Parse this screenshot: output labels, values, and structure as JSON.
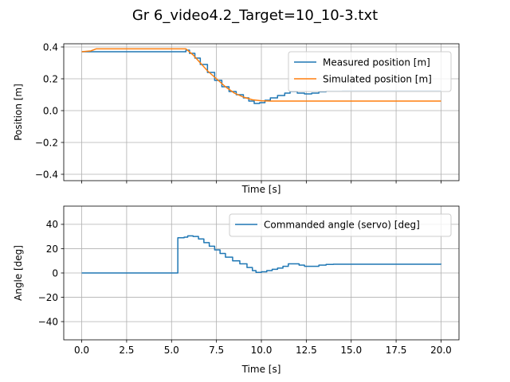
{
  "figure": {
    "title": "Gr 6_video4.2_Target=10_10-3.txt"
  },
  "chart_data": [
    {
      "type": "line",
      "xlabel": "Time [s]",
      "ylabel": "Position [m]",
      "xlim": [
        -1.0,
        21.0
      ],
      "ylim": [
        -0.44,
        0.42
      ],
      "x_ticks": [
        0.0,
        2.5,
        5.0,
        7.5,
        10.0,
        12.5,
        15.0,
        17.5,
        20.0
      ],
      "y_ticks": [
        -0.4,
        -0.2,
        0.0,
        0.2,
        0.4
      ],
      "y_tick_labels": [
        "−0.4",
        "−0.2",
        "0.0",
        "0.2",
        "0.4"
      ],
      "show_x_tick_labels": false,
      "grid": true,
      "legend": "top-right",
      "series": [
        {
          "name": "Measured position [m]",
          "color": "#1f77b4",
          "step": true,
          "points": [
            [
              0,
              0.37
            ],
            [
              5.6,
              0.37
            ],
            [
              5.8,
              0.38
            ],
            [
              6.0,
              0.36
            ],
            [
              6.3,
              0.33
            ],
            [
              6.6,
              0.29
            ],
            [
              7.0,
              0.24
            ],
            [
              7.4,
              0.19
            ],
            [
              7.8,
              0.15
            ],
            [
              8.2,
              0.12
            ],
            [
              8.6,
              0.1
            ],
            [
              9.0,
              0.08
            ],
            [
              9.3,
              0.06
            ],
            [
              9.6,
              0.045
            ],
            [
              9.9,
              0.05
            ],
            [
              10.2,
              0.065
            ],
            [
              10.5,
              0.08
            ],
            [
              10.9,
              0.095
            ],
            [
              11.3,
              0.11
            ],
            [
              11.6,
              0.12
            ],
            [
              12.0,
              0.11
            ],
            [
              12.4,
              0.105
            ],
            [
              12.8,
              0.11
            ],
            [
              13.2,
              0.118
            ],
            [
              13.6,
              0.122
            ],
            [
              14.5,
              0.123
            ],
            [
              20.0,
              0.123
            ]
          ]
        },
        {
          "name": "Simulated position [m]",
          "color": "#ff7f0e",
          "step": false,
          "points": [
            [
              0,
              0.37
            ],
            [
              0.5,
              0.375
            ],
            [
              0.8,
              0.388
            ],
            [
              5.8,
              0.388
            ],
            [
              6.2,
              0.35
            ],
            [
              6.6,
              0.3
            ],
            [
              7.0,
              0.25
            ],
            [
              7.5,
              0.2
            ],
            [
              8.0,
              0.15
            ],
            [
              8.5,
              0.11
            ],
            [
              9.0,
              0.085
            ],
            [
              9.5,
              0.068
            ],
            [
              10.0,
              0.062
            ],
            [
              10.5,
              0.06
            ],
            [
              20.0,
              0.06
            ]
          ]
        }
      ]
    },
    {
      "type": "line",
      "xlabel": "Time [s]",
      "ylabel": "Angle [deg]",
      "xlim": [
        -1.0,
        21.0
      ],
      "ylim": [
        -55,
        55
      ],
      "x_ticks": [
        0.0,
        2.5,
        5.0,
        7.5,
        10.0,
        12.5,
        15.0,
        17.5,
        20.0
      ],
      "x_tick_labels": [
        "0.0",
        "2.5",
        "5.0",
        "7.5",
        "10.0",
        "12.5",
        "15.0",
        "17.5",
        "20.0"
      ],
      "y_ticks": [
        -40,
        -20,
        0,
        20,
        40
      ],
      "y_tick_labels": [
        "−40",
        "−20",
        "0",
        "20",
        "40"
      ],
      "show_x_tick_labels": true,
      "grid": true,
      "legend": "top-right",
      "series": [
        {
          "name": "Commanded angle (servo) [deg]",
          "color": "#1f77b4",
          "step": true,
          "points": [
            [
              0,
              0
            ],
            [
              5.3,
              0
            ],
            [
              5.35,
              29
            ],
            [
              5.7,
              29.5
            ],
            [
              5.9,
              30.5
            ],
            [
              6.2,
              30
            ],
            [
              6.5,
              28
            ],
            [
              6.8,
              25
            ],
            [
              7.1,
              22
            ],
            [
              7.4,
              19
            ],
            [
              7.7,
              16
            ],
            [
              8.0,
              13
            ],
            [
              8.4,
              10
            ],
            [
              8.8,
              7.5
            ],
            [
              9.2,
              4.5
            ],
            [
              9.5,
              2
            ],
            [
              9.7,
              0.5
            ],
            [
              10.0,
              1
            ],
            [
              10.3,
              2
            ],
            [
              10.6,
              3
            ],
            [
              10.9,
              4
            ],
            [
              11.2,
              5.5
            ],
            [
              11.5,
              7.5
            ],
            [
              11.8,
              7.5
            ],
            [
              12.1,
              6.5
            ],
            [
              12.4,
              5.5
            ],
            [
              12.8,
              5.5
            ],
            [
              13.2,
              6.5
            ],
            [
              13.6,
              7
            ],
            [
              14.0,
              7.2
            ],
            [
              15.0,
              7.2
            ],
            [
              20.0,
              7
            ]
          ]
        }
      ]
    }
  ]
}
